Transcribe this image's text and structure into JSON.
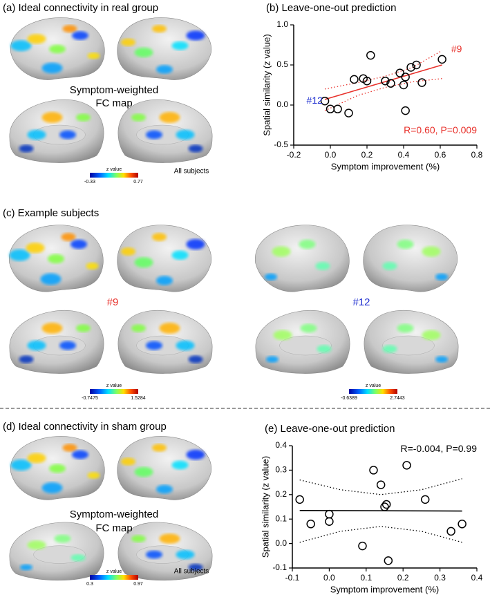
{
  "chart_data": [
    {
      "type": "scatter",
      "title": "(b) Leave-one-out prediction",
      "x_label": "Symptom improvement (%)",
      "y_label": "Spatial similarity (z value)",
      "x": [
        -0.03,
        0.0,
        0.04,
        0.1,
        0.13,
        0.18,
        0.2,
        0.22,
        0.3,
        0.33,
        0.38,
        0.4,
        0.41,
        0.41,
        0.44,
        0.47,
        0.5,
        0.61
      ],
      "values": [
        0.05,
        -0.05,
        -0.05,
        -0.1,
        0.32,
        0.33,
        0.3,
        0.62,
        0.3,
        0.27,
        0.4,
        0.25,
        0.35,
        -0.07,
        0.47,
        0.5,
        0.28,
        0.57
      ],
      "color": "#000000",
      "fit": {
        "x": [
          -0.03,
          0.61
        ],
        "y": [
          0.07,
          0.5
        ],
        "color": "#e8302a"
      },
      "ci_upper": {
        "x": [
          -0.03,
          0.15,
          0.3,
          0.45,
          0.61
        ],
        "y": [
          0.2,
          0.28,
          0.36,
          0.47,
          0.68
        ]
      },
      "ci_lower": {
        "x": [
          -0.03,
          0.15,
          0.3,
          0.45,
          0.61
        ],
        "y": [
          -0.07,
          0.12,
          0.22,
          0.29,
          0.33
        ]
      },
      "annotations": [
        {
          "text": "#9",
          "color": "#e8302a"
        },
        {
          "text": "#12",
          "color": "#1f2fd0"
        },
        {
          "text": "R=0.60, P=0.009",
          "color": "#e8302a"
        }
      ],
      "xlim": [
        -0.2,
        0.8
      ],
      "xticks": [
        -0.2,
        {
          "value": 0,
          "label": "0.0"
        },
        0.2,
        0.4,
        0.6,
        0.8
      ],
      "ylim": [
        -0.5,
        1.0
      ],
      "yticks": [
        -0.5,
        {
          "value": 0,
          "label": "0.0"
        },
        0.5,
        {
          "value": 1.0,
          "label": "1.0"
        }
      ]
    },
    {
      "type": "scatter",
      "title": "(e) Leave-one-out prediction",
      "x_label": "Symptom improvement (%)",
      "y_label": "Spatial similarity (z value)",
      "x": [
        -0.08,
        -0.05,
        0.0,
        0.0,
        0.09,
        0.12,
        0.14,
        0.15,
        0.155,
        0.16,
        0.21,
        0.26,
        0.33,
        0.36
      ],
      "values": [
        0.18,
        0.08,
        0.12,
        0.09,
        -0.01,
        0.3,
        0.24,
        0.15,
        0.16,
        -0.07,
        0.32,
        0.18,
        0.05,
        0.08
      ],
      "color": "#000000",
      "fit": {
        "x": [
          -0.08,
          0.36
        ],
        "y": [
          0.135,
          0.133
        ],
        "color": "#000000"
      },
      "ci_upper": {
        "x": [
          -0.08,
          0.03,
          0.14,
          0.25,
          0.36
        ],
        "y": [
          0.26,
          0.22,
          0.2,
          0.22,
          0.265
        ]
      },
      "ci_lower": {
        "x": [
          -0.08,
          0.03,
          0.14,
          0.25,
          0.36
        ],
        "y": [
          0.005,
          0.05,
          0.07,
          0.05,
          0.005
        ]
      },
      "annotations": [
        {
          "text": "R=-0.004, P=0.99",
          "color": "#000000"
        }
      ],
      "xlim": [
        -0.1,
        0.4
      ],
      "xticks": [
        -0.1,
        {
          "value": 0,
          "label": "0.0"
        },
        0.1,
        0.2,
        0.3,
        0.4
      ],
      "ylim": [
        -0.1,
        0.4
      ],
      "yticks": [
        -0.1,
        {
          "value": 0,
          "label": "0.0"
        },
        0.1,
        0.2,
        0.3,
        0.4
      ]
    }
  ],
  "panels": {
    "a": {
      "label": "(a) Ideal connectivity in real group",
      "map_title": [
        "Symptom-weighted",
        "FC map"
      ],
      "colorbar": {
        "title": "z value",
        "min": "-0.33",
        "max": "0.77"
      },
      "note": "All subjects"
    },
    "c": {
      "label": "(c) Example subjects",
      "subjects": [
        {
          "name": "#9",
          "colorbar": {
            "title": "z value",
            "min": "-0.7475",
            "max": "1.5284"
          }
        },
        {
          "name": "#12",
          "colorbar": {
            "title": "z value",
            "min": "-0.6389",
            "max": "2.7443"
          }
        }
      ]
    },
    "d": {
      "label": "(d) Ideal connectivity in sham group",
      "map_title": [
        "Symptom-weighted",
        "FC map"
      ],
      "colorbar": {
        "title": "z value",
        "min": "0.3",
        "max": "0.97"
      },
      "note": "All subjects"
    }
  }
}
